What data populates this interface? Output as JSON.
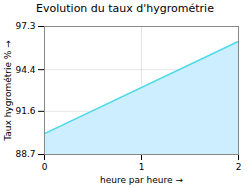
{
  "chart_data": {
    "type": "area",
    "title": "Evolution du taux d'hygrométrie",
    "xlabel": "heure par heure",
    "ylabel": "Taux hygrométrie %",
    "x": [
      0,
      2
    ],
    "values": [
      90.1,
      96.3
    ],
    "colors": [
      "#cceeff",
      "#4dd9e8"
    ],
    "xlim": [
      0,
      2
    ],
    "xticks": [
      0,
      1,
      2
    ],
    "ylim": [
      88.7,
      97.3
    ],
    "yticks": [
      88.7,
      91.6,
      94.4,
      97.3
    ],
    "grid": true
  }
}
